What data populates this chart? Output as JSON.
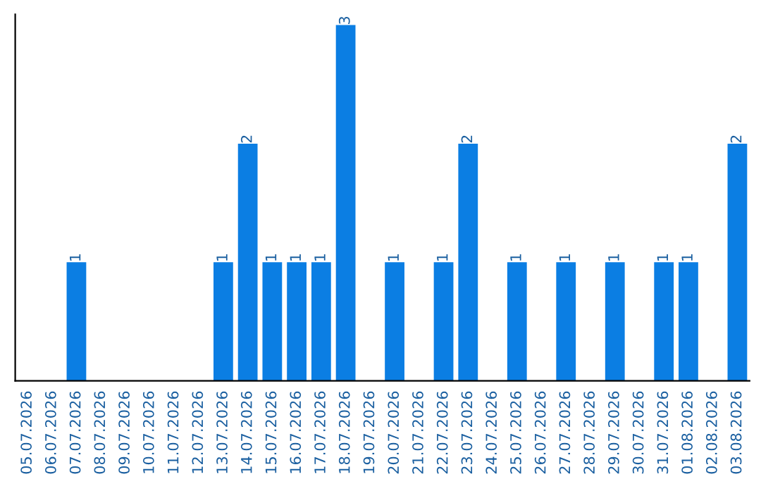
{
  "chart_data": {
    "type": "bar",
    "categories": [
      "05.07.2026",
      "06.07.2026",
      "07.07.2026",
      "08.07.2026",
      "09.07.2026",
      "10.07.2026",
      "11.07.2026",
      "12.07.2026",
      "13.07.2026",
      "14.07.2026",
      "15.07.2026",
      "16.07.2026",
      "17.07.2026",
      "18.07.2026",
      "19.07.2026",
      "20.07.2026",
      "21.07.2026",
      "22.07.2026",
      "23.07.2026",
      "24.07.2026",
      "25.07.2026",
      "26.07.2026",
      "27.07.2026",
      "28.07.2026",
      "29.07.2026",
      "30.07.2026",
      "31.07.2026",
      "01.08.2026",
      "02.08.2026",
      "03.08.2026"
    ],
    "values": [
      null,
      null,
      1,
      null,
      null,
      null,
      null,
      null,
      1,
      2,
      1,
      1,
      1,
      3,
      null,
      1,
      null,
      1,
      2,
      null,
      1,
      null,
      1,
      null,
      1,
      null,
      1,
      1,
      null,
      2
    ],
    "value_labels": [
      null,
      null,
      "1",
      null,
      null,
      null,
      null,
      null,
      "1",
      "2",
      "1",
      "1",
      "1",
      "3",
      null,
      "1",
      null,
      "1",
      "2",
      null,
      "1",
      null,
      "1",
      null,
      "1",
      null,
      "1",
      "1",
      null,
      "2"
    ],
    "color": "#0b7ee3",
    "tick_labels": "x",
    "grid": false,
    "legend": false
  }
}
